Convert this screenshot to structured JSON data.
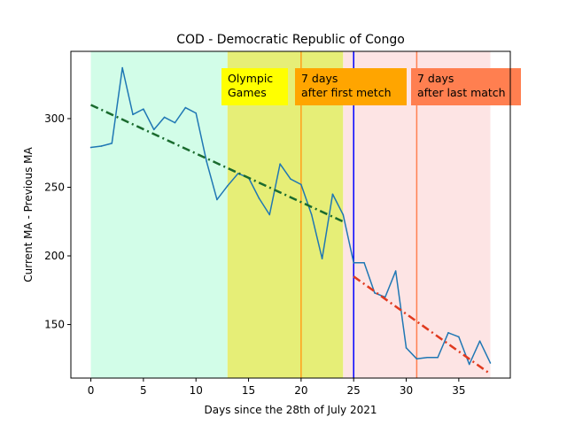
{
  "chart_data": {
    "type": "line",
    "title": "COD - Democratic Republic of Congo",
    "xlabel": "Days since the 28th of July 2021",
    "ylabel": "Current MA - Previous MA",
    "xlim": [
      -1.9,
      39.9
    ],
    "ylim": [
      111,
      349
    ],
    "xticks": [
      0,
      5,
      10,
      15,
      20,
      25,
      30,
      35
    ],
    "yticks": [
      150,
      200,
      250,
      300
    ],
    "grid": false,
    "series": [
      {
        "color": "#1f77b4",
        "x": [
          0,
          1,
          2,
          3,
          4,
          5,
          6,
          7,
          8,
          9,
          10,
          11,
          12,
          13,
          14,
          15,
          16,
          17,
          18,
          19,
          20,
          21,
          22,
          23,
          24,
          25,
          26,
          27,
          28,
          29,
          30,
          31,
          32,
          33,
          34,
          35,
          36,
          37,
          38
        ],
        "y": [
          279,
          280,
          282,
          337,
          303,
          307,
          292,
          301,
          297,
          308,
          304,
          269,
          241,
          251,
          260,
          257,
          242,
          230,
          267,
          256,
          252,
          230,
          198,
          245,
          230,
          195,
          195,
          173,
          170,
          189,
          133,
          125,
          126,
          126,
          144,
          141,
          121,
          138,
          122
        ]
      }
    ],
    "trendlines": [
      {
        "color": "#1a6b2e",
        "x": [
          0,
          24
        ],
        "y": [
          310,
          225
        ]
      },
      {
        "color": "#e03a1f",
        "x": [
          25,
          38
        ],
        "y": [
          185,
          114
        ]
      }
    ],
    "shaded_regions": [
      {
        "x": [
          0,
          13
        ],
        "color": "#d2fde8"
      },
      {
        "x": [
          13,
          24
        ],
        "color": "#e6ee77"
      },
      {
        "x": [
          24,
          38
        ],
        "color": "#fde4e4"
      }
    ],
    "vertical_lines": [
      {
        "x": 20,
        "color": "#ff9f1a"
      },
      {
        "x": 25,
        "color": "#0000ff"
      },
      {
        "x": 31,
        "color": "#ff7f50"
      }
    ],
    "annotations": [
      {
        "lines": [
          "Olympic",
          "Games"
        ],
        "color": "#ffff00"
      },
      {
        "lines": [
          "7 days",
          "after first metch"
        ],
        "color": "#ffa500"
      },
      {
        "lines": [
          "7 days",
          "after last match"
        ],
        "color": "#ff7f50"
      }
    ]
  }
}
